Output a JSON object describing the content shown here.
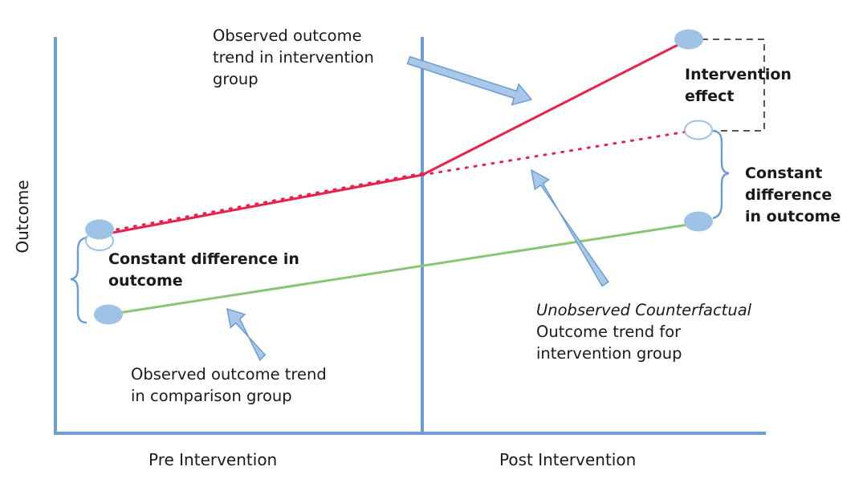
{
  "axes": {
    "y_label": "Outcome",
    "x_pre_label": "Pre Intervention",
    "x_post_label": "Post Intervention"
  },
  "annotations": {
    "observed_intervention": [
      "Observed outcome",
      "trend in intervention",
      "group"
    ],
    "intervention_effect": [
      "Intervention",
      "effect"
    ],
    "constant_diff_right": [
      "Constant",
      "difference",
      "in outcome"
    ],
    "constant_diff_left": [
      "Constant difference in",
      "outcome"
    ],
    "counterfactual_italic": "Unobserved Counterfactual",
    "counterfactual_rest": [
      "Outcome trend for",
      "intervention group"
    ],
    "observed_comparison": [
      "Observed outcome trend",
      "in comparison group"
    ]
  },
  "colors": {
    "axis": "#6d9fd6",
    "intervention_line": "#e8224f",
    "comparison_line": "#8cc572",
    "marker_fill": "#9fc3e7",
    "arrow_fill": "#a9c7e8",
    "arrow_stroke": "#6e9dd1",
    "effect_box": "#555555"
  }
}
